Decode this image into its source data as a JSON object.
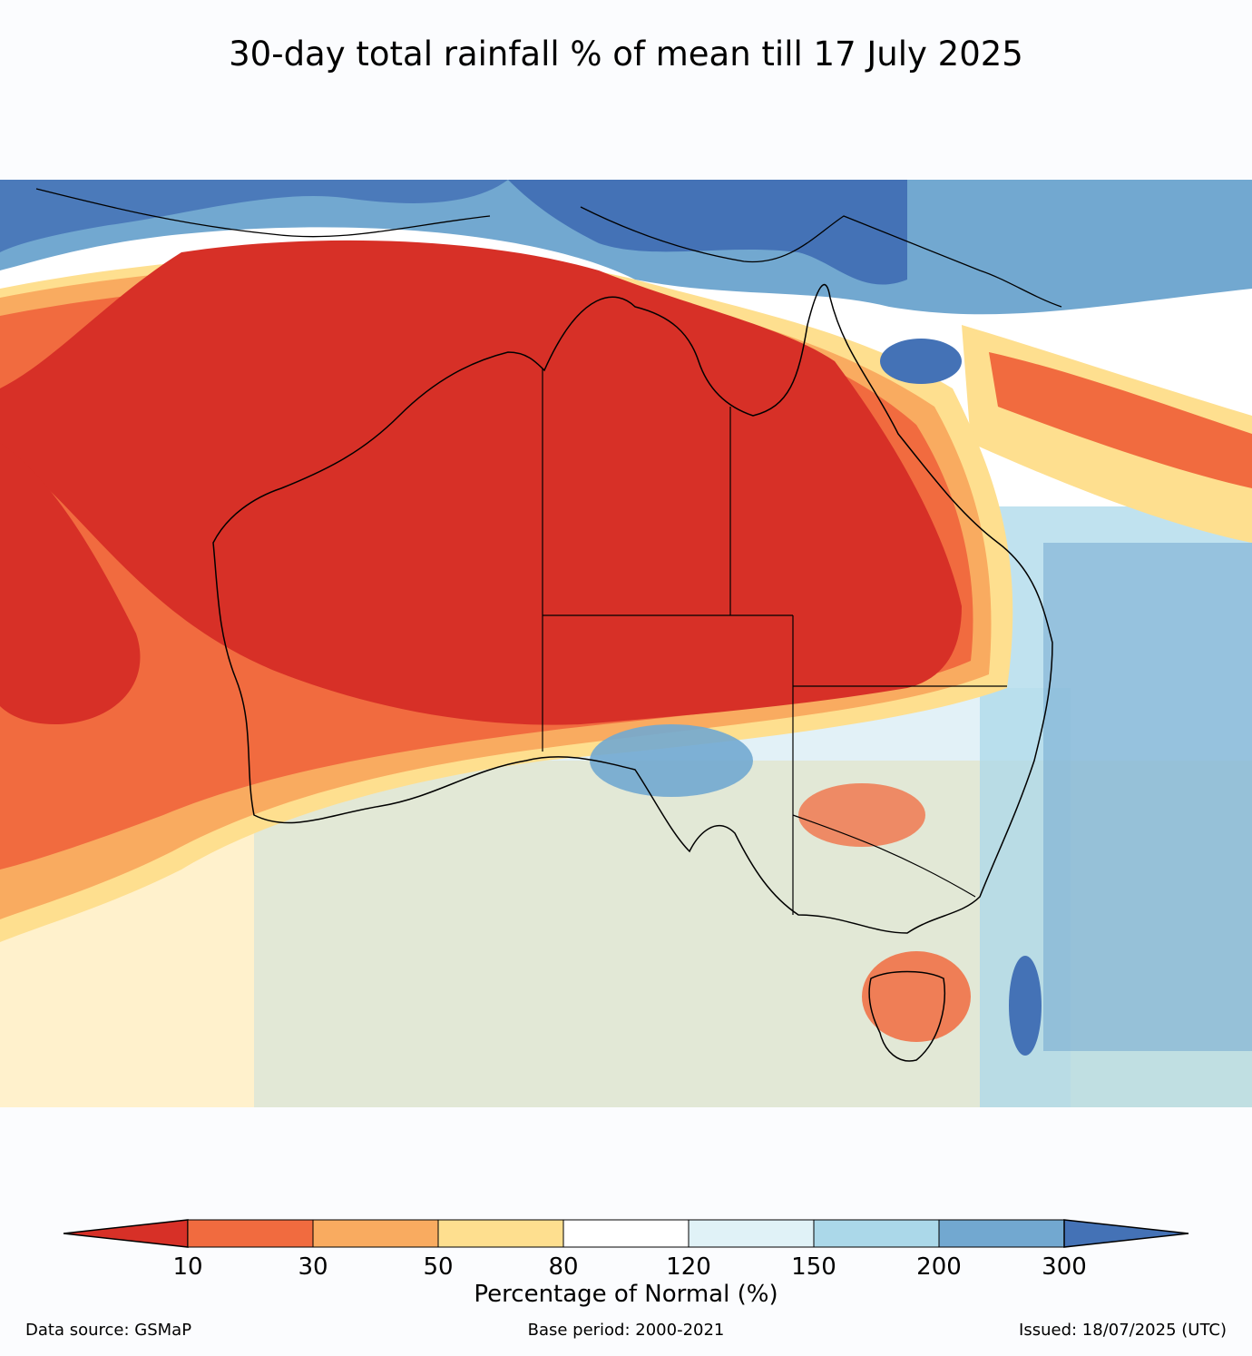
{
  "title": "30-day total rainfall % of mean till 17 July 2025",
  "colorbar": {
    "label": "Percentage of Normal (%)",
    "ticks": [
      "10",
      "30",
      "50",
      "80",
      "120",
      "150",
      "200",
      "300"
    ],
    "colors": [
      "#d73027",
      "#f16b3f",
      "#f9ab60",
      "#fedf8f",
      "#ffffff",
      "#e0f2f7",
      "#abd8e9",
      "#72a8d0",
      "#4472b6"
    ],
    "extend": "both"
  },
  "footer": {
    "source": "Data source: GSMaP",
    "base_period": "Base period: 2000-2021",
    "issued": "Issued: 18/07/2025 (UTC)"
  },
  "map": {
    "region": "Australia",
    "variable": "30-day total rainfall percentage of mean",
    "dominant_pattern": "very dry (<10%) over central and western Australia; wetter than normal (>150%) near New Guinea and in the Tasman Sea and southeast coast"
  }
}
